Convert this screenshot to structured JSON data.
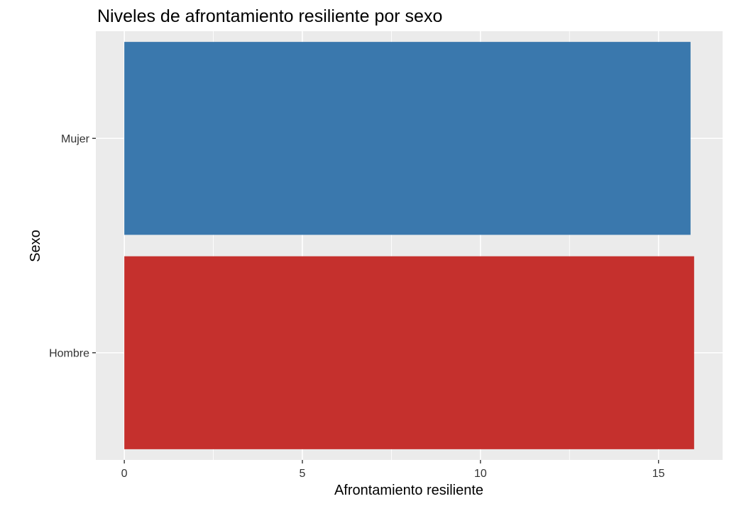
{
  "chart_data": {
    "type": "bar",
    "orientation": "horizontal",
    "title": "Niveles de afrontamiento resiliente por sexo",
    "xlabel": "Afrontamiento resiliente",
    "ylabel": "Sexo",
    "categories": [
      "Hombre",
      "Mujer"
    ],
    "values": [
      16.0,
      15.9
    ],
    "colors": [
      "#C5302D",
      "#3A78AD"
    ],
    "xlim": [
      -0.8,
      16.8
    ],
    "x_ticks": [
      0,
      5,
      10,
      15
    ],
    "grid": true,
    "legend": "none",
    "panel_background": "#EBEBEB",
    "grid_color": "#FFFFFF"
  }
}
